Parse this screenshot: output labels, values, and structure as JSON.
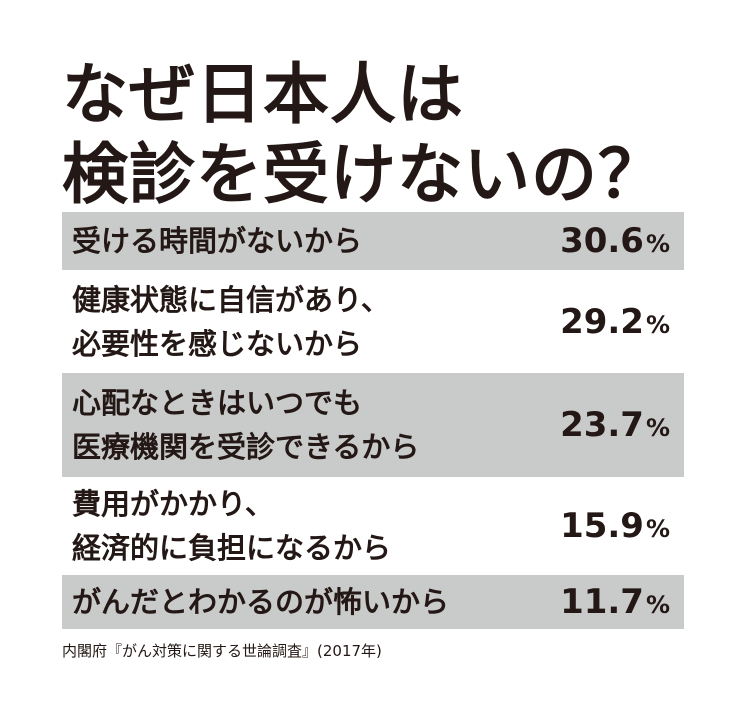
{
  "header": {
    "title": [
      "なぜ日本人は",
      "検診を受けないの？"
    ]
  },
  "table": {
    "rows": [
      {
        "reason": [
          "受ける時間がないから"
        ],
        "value": "30.6",
        "unit": "%"
      },
      {
        "reason": [
          "健康状態に自信があり、",
          "必要性を感じないから"
        ],
        "value": "29.2",
        "unit": "%"
      },
      {
        "reason": [
          "心配なときはいつでも",
          "医療機関を受診できるから"
        ],
        "value": "23.7",
        "unit": "%"
      },
      {
        "reason": [
          "費用がかかり、",
          "経済的に負担になるから"
        ],
        "value": "15.9",
        "unit": "%"
      },
      {
        "reason": [
          "がんだとわかるのが怖いから"
        ],
        "value": "11.7",
        "unit": "%"
      }
    ]
  },
  "footer": {
    "source": "内閣府『がん対策に関する世論調査』(2017年)"
  }
}
